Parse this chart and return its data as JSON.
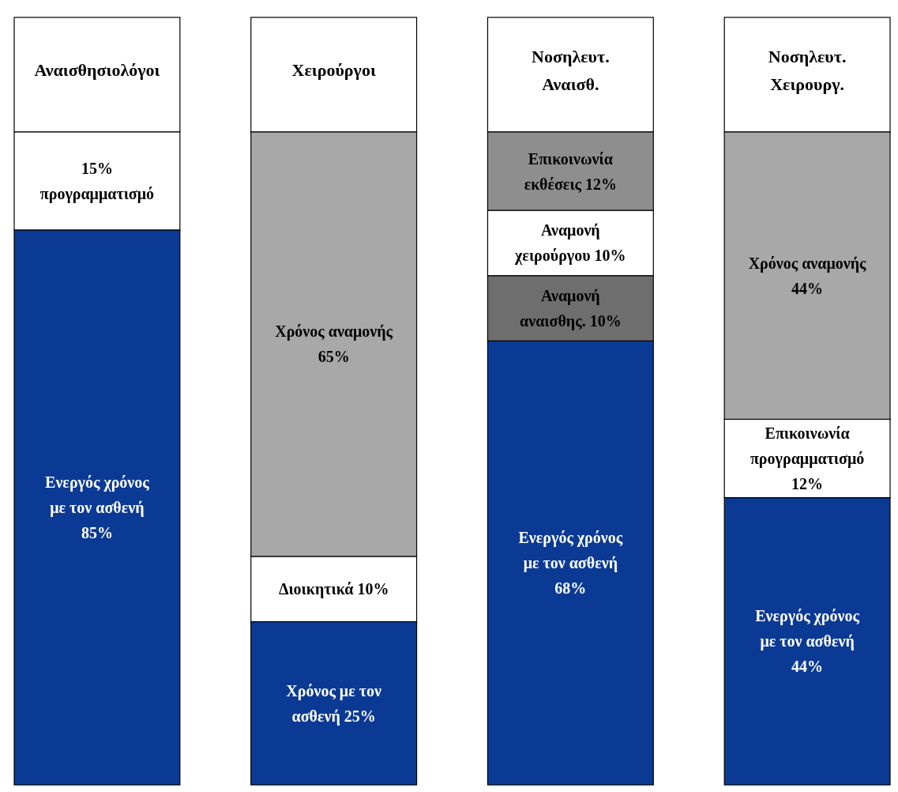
{
  "chart_data": {
    "type": "bar",
    "stacked": true,
    "tick_labels": false,
    "ylim": [
      0,
      100
    ],
    "categories": [
      "Αναισθησιολόγοι",
      "Χειρούργοι",
      "Νοσηλευτ. Αναισθ.",
      "Νοσηλευτ. Χειρουργ."
    ],
    "series": [
      {
        "colors": [
          "#0b3a94",
          "#0b3a94",
          "#0b3a94",
          "#0b3a94"
        ],
        "values": [
          85,
          25,
          68,
          44
        ],
        "value_labels": [
          "Ενεργός χρόνος με τον ασθενή 85%",
          "Χρόνος με τον ασθενή 25%",
          "Ενεργός χρόνος με τον ασθενή 68%",
          "Ενεργός χρόνος με τον ασθενή 44%"
        ]
      },
      {
        "colors": [
          "#ffffff",
          "#ffffff",
          "#6e6e6e",
          "#ffffff"
        ],
        "values": [
          15,
          10,
          10,
          12
        ],
        "value_labels": [
          "15% προγραμματισμό",
          "Διοικητικά 10%",
          "Αναμονή αναισθης. 10%",
          "Επικοινωνία προγραμματισμό 12%"
        ]
      },
      {
        "colors": [
          null,
          "#a8a8a8",
          "#ffffff",
          "#a8a8a8"
        ],
        "values": [
          null,
          65,
          10,
          44
        ],
        "value_labels": [
          null,
          "Χρόνος αναμονής 65%",
          "Αναμονή χειρούργου 10%",
          "Χρόνος αναμονής 44%"
        ]
      },
      {
        "colors": [
          null,
          null,
          "#8e8e8e",
          null
        ],
        "values": [
          null,
          null,
          12,
          null
        ],
        "value_labels": [
          null,
          null,
          "Επικοινωνία εκθέσεις 12%",
          null
        ]
      }
    ]
  }
}
